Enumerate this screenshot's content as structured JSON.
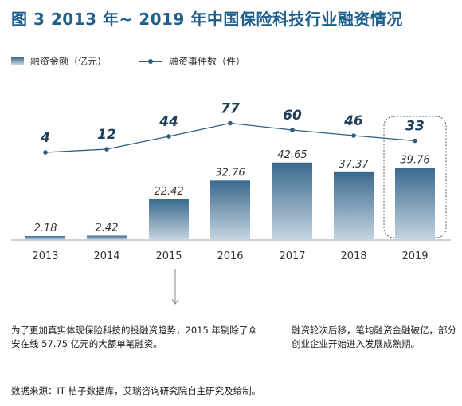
{
  "title": "图 3  2013 年~ 2019 年中国保险科技行业融资情况",
  "legend": {
    "bar_label": "融资金额（亿元）",
    "line_label": "融资事件数（件）"
  },
  "chart_data": {
    "type": "bar",
    "categories": [
      "2013",
      "2014",
      "2015",
      "2016",
      "2017",
      "2018",
      "2019"
    ],
    "series": [
      {
        "name": "融资金额（亿元）",
        "type": "bar",
        "values": [
          2.18,
          2.42,
          22.42,
          32.76,
          42.65,
          37.37,
          39.76
        ],
        "labels": [
          "2.18",
          "2.42",
          "22.42",
          "32.76",
          "42.65",
          "37.37",
          "39.76"
        ]
      },
      {
        "name": "融资事件数（件）",
        "type": "line",
        "values": [
          4,
          12,
          44,
          77,
          60,
          46,
          33
        ],
        "labels": [
          "4",
          "12",
          "44",
          "77",
          "60",
          "46",
          "33"
        ]
      }
    ],
    "highlight_category": "2019",
    "colors": {
      "bar_top": "#3a6a8e",
      "bar_bottom": "#c6d5e1",
      "line": "#2f5f7f",
      "title": "#1f5f8b"
    }
  },
  "notes": {
    "left": "为了更加真实体现保险科技的投融资趋势，2015 年剔除了众安在线 57.75 亿元的大额单笔融资。",
    "right": "融资轮次后移，笔均融资金融破亿，部分创业企业开始进入发展成熟期。"
  },
  "source": "数据来源：IT 桔子数据库，艾瑞咨询研究院自主研究及绘制。"
}
